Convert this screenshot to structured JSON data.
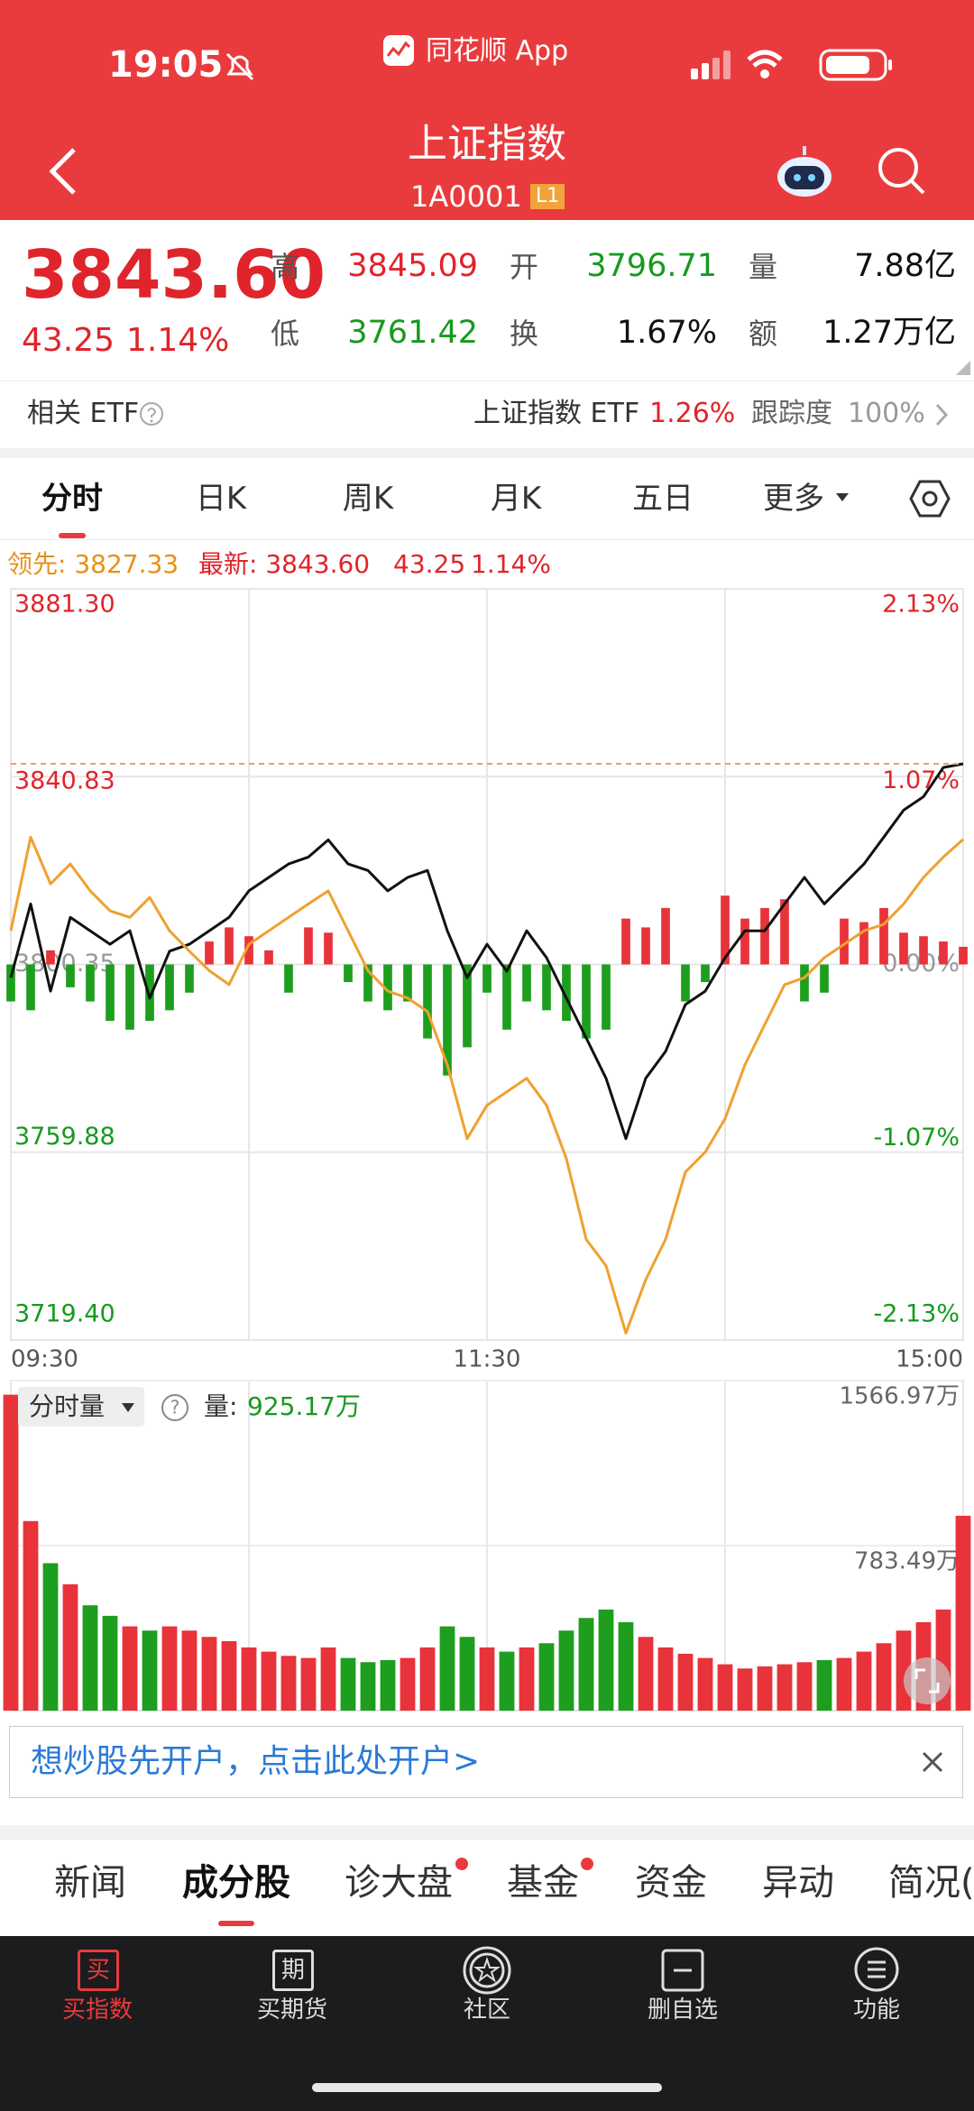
{
  "status_bar": {
    "time": "19:05",
    "app_name": "同花顺 App"
  },
  "header": {
    "title": "上证指数",
    "code": "1A0001",
    "level": "L1"
  },
  "quote": {
    "price": "3843.60",
    "change": "43.25",
    "change_pct": "1.14%",
    "stats": [
      {
        "label": "高",
        "value": "3845.09",
        "color": "#e0242b"
      },
      {
        "label": "开",
        "value": "3796.71",
        "color": "#169a1e"
      },
      {
        "label": "量",
        "value": "7.88亿",
        "color": "#111111"
      },
      {
        "label": "低",
        "value": "3761.42",
        "color": "#169a1e"
      },
      {
        "label": "换",
        "value": "1.67%",
        "color": "#111111"
      },
      {
        "label": "额",
        "value": "1.27万亿",
        "color": "#111111"
      }
    ]
  },
  "etf": {
    "label": "相关 ETF",
    "name": "上证指数 ETF",
    "change_pct": "1.26%",
    "tracking_label": "跟踪度",
    "tracking": "100%"
  },
  "period_tabs": [
    "分时",
    "日K",
    "周K",
    "月K",
    "五日",
    "更多"
  ],
  "chart_data": [
    {
      "type": "line",
      "legend": [
        "领先: 3827.33",
        "最新: 3843.60",
        "43.25",
        "1.14%"
      ],
      "x": [
        0,
        5,
        10,
        15,
        20,
        25,
        30,
        35,
        40,
        45,
        50,
        55,
        60,
        65,
        70,
        75,
        80,
        85,
        90,
        95,
        100,
        105,
        110,
        115,
        120,
        125,
        130,
        135,
        140,
        145,
        150,
        155,
        160,
        165,
        170,
        175,
        180,
        185,
        190,
        195,
        200,
        205,
        210,
        215,
        220,
        225,
        230,
        235,
        240
      ],
      "xlim": [
        0,
        240
      ],
      "xticks": [
        {
          "value": 0,
          "label": "09:30"
        },
        {
          "value": 120,
          "label": "11:30"
        },
        {
          "value": 240,
          "label": "15:00"
        }
      ],
      "ylim": [
        3719.4,
        3881.3
      ],
      "yticks": [
        {
          "value": 3719.4,
          "label": "3719.40"
        },
        3759.88,
        3800.35,
        3840.83,
        {
          "value": 3881.3,
          "label": "3881.30"
        }
      ],
      "y2lim": [
        -2.13,
        2.13
      ],
      "y2ticks": [
        {
          "value": -2.13,
          "label": "-2.13%"
        },
        {
          "value": -1.07,
          "label": "-1.07%"
        },
        {
          "value": 0,
          "label": "0.00%"
        },
        {
          "value": 1.07,
          "label": "1.07%"
        },
        {
          "value": 2.13,
          "label": "2.13%"
        }
      ],
      "grid": true,
      "series": [
        {
          "color": "#111111",
          "values": [
            3797.5,
            3813.4,
            3794.6,
            3810.5,
            3807.6,
            3804.7,
            3807.6,
            3793.1,
            3803.2,
            3804.7,
            3807.6,
            3810.5,
            3816.2,
            3819.1,
            3822.0,
            3823.5,
            3827.2,
            3822.0,
            3820.6,
            3816.2,
            3819.1,
            3820.6,
            3807.6,
            3797.5,
            3804.7,
            3798.9,
            3807.6,
            3801.8,
            3793.1,
            3784.5,
            3775.8,
            3762.8,
            3775.8,
            3781.6,
            3791.7,
            3794.6,
            3801.8,
            3807.6,
            3807.6,
            3813.4,
            3819.1,
            3813.4,
            3817.7,
            3822.0,
            3827.8,
            3833.6,
            3836.5,
            3842.8,
            3843.6
          ]
        },
        {
          "color": "#f0a030",
          "values": [
            3807.6,
            3827.8,
            3817.7,
            3822.0,
            3816.2,
            3811.9,
            3810.5,
            3814.8,
            3807.6,
            3803.2,
            3799.0,
            3796.0,
            3804.7,
            3807.6,
            3810.5,
            3813.4,
            3816.2,
            3807.6,
            3799.0,
            3794.6,
            3793.1,
            3790.2,
            3778.7,
            3762.8,
            3770.0,
            3772.9,
            3775.8,
            3770.0,
            3758.5,
            3741.1,
            3735.4,
            3720.9,
            3732.4,
            3741.1,
            3755.6,
            3759.9,
            3767.1,
            3778.7,
            3787.4,
            3796.0,
            3797.5,
            3801.8,
            3804.7,
            3807.6,
            3809.0,
            3813.4,
            3819.1,
            3823.5,
            3827.33
          ]
        }
      ],
      "bars": {
        "axis": "y2",
        "up_color": "#e8333a",
        "down_color": "#1e9e1e",
        "values": [
          -0.21,
          -0.26,
          0.08,
          -0.13,
          -0.21,
          -0.32,
          -0.37,
          -0.32,
          -0.26,
          -0.16,
          0.13,
          0.21,
          0.16,
          0.08,
          -0.16,
          0.21,
          0.18,
          -0.1,
          -0.21,
          -0.26,
          -0.21,
          -0.42,
          -0.63,
          -0.47,
          -0.16,
          -0.37,
          -0.21,
          -0.26,
          -0.32,
          -0.42,
          -0.37,
          0.26,
          0.21,
          0.32,
          -0.21,
          -0.1,
          0.39,
          0.26,
          0.32,
          0.37,
          -0.21,
          -0.16,
          0.26,
          0.24,
          0.32,
          0.18,
          0.16,
          0.13,
          0.1
        ]
      }
    },
    {
      "type": "bar",
      "selector": "分时量",
      "legend": [
        "量:",
        "925.17万"
      ],
      "x": [
        0,
        5,
        10,
        15,
        20,
        25,
        30,
        35,
        40,
        45,
        50,
        55,
        60,
        65,
        70,
        75,
        80,
        85,
        90,
        95,
        100,
        105,
        110,
        115,
        120,
        125,
        130,
        135,
        140,
        145,
        150,
        155,
        160,
        165,
        170,
        175,
        180,
        185,
        190,
        195,
        200,
        205,
        210,
        215,
        220,
        225,
        230,
        235,
        240
      ],
      "xlim": [
        0,
        240
      ],
      "ylim": [
        0,
        1566.97
      ],
      "yticks": [
        {
          "value": 783.49,
          "label": "783.49万"
        },
        {
          "value": 1566.97,
          "label": "1566.97万"
        }
      ],
      "up_color": "#e8333a",
      "down_color": "#1e9e1e",
      "values": [
        1500,
        900,
        700,
        600,
        500,
        450,
        400,
        380,
        400,
        380,
        350,
        330,
        300,
        280,
        260,
        250,
        300,
        250,
        230,
        240,
        250,
        300,
        400,
        350,
        300,
        280,
        300,
        320,
        380,
        440,
        480,
        420,
        350,
        300,
        270,
        250,
        220,
        200,
        210,
        220,
        230,
        240,
        250,
        280,
        320,
        380,
        420,
        480,
        925.17
      ]
    }
  ],
  "banner": {
    "text": "想炒股先开户，点击此处开户>"
  },
  "section_tabs": [
    "新闻",
    "成分股",
    "诊大盘",
    "基金",
    "资金",
    "异动",
    "简况("
  ],
  "bottom_nav": {
    "icons": [
      "买",
      "期"
    ],
    "labels": [
      "买指数",
      "买期货",
      "社区",
      "删自选",
      "功能"
    ]
  }
}
